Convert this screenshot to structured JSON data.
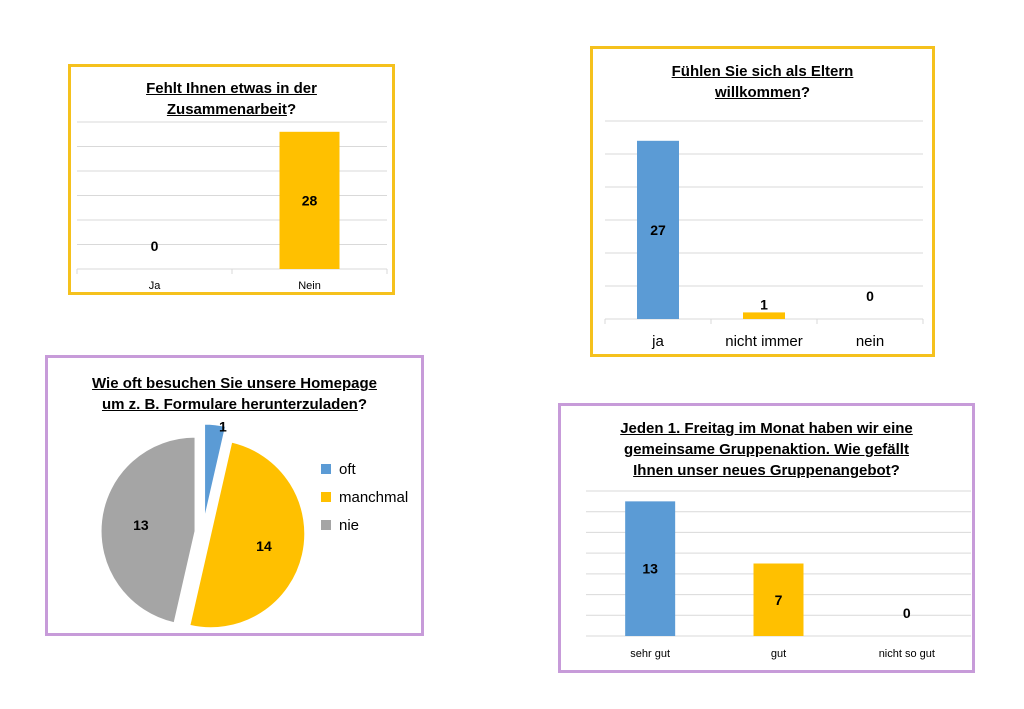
{
  "colors": {
    "blue": "#5b9bd5",
    "gold": "#ffc000",
    "gray": "#a5a5a5",
    "grid": "#d9d9d9",
    "border_gold": "#f5c11d",
    "border_violet": "#c79bd9"
  },
  "chart_data": [
    {
      "id": "c1",
      "type": "bar",
      "title_lines": [
        {
          "text": "Fehlt Ihnen etwas in der",
          "mark": ""
        },
        {
          "text": "Zusammenarbeit",
          "mark": "?"
        }
      ],
      "categories": [
        "Ja",
        "Nein"
      ],
      "values": [
        0,
        28
      ],
      "data_labels": [
        "0",
        "28"
      ],
      "colors": [
        "#ffc000",
        "#ffc000"
      ],
      "ylim": [
        0,
        30
      ],
      "grid": true,
      "legend": "none"
    },
    {
      "id": "c2",
      "type": "bar",
      "title_lines": [
        {
          "text": "Fühlen Sie sich als Eltern",
          "mark": ""
        },
        {
          "text": "willkommen",
          "mark": "?"
        }
      ],
      "categories": [
        "ja",
        "nicht immer",
        "nein"
      ],
      "values": [
        27,
        1,
        0
      ],
      "data_labels": [
        "27",
        "1",
        "0"
      ],
      "colors": [
        "#5b9bd5",
        "#ffc000",
        "#a5a5a5"
      ],
      "ylim": [
        0,
        30
      ],
      "grid": true,
      "legend": "none"
    },
    {
      "id": "c3",
      "type": "pie",
      "title_lines": [
        {
          "text": "Wie oft besuchen Sie unsere Homepage",
          "mark": ""
        },
        {
          "text": "um z. B. Formulare herunterzuladen",
          "mark": "?"
        }
      ],
      "categories": [
        "oft",
        "manchmal",
        "nie"
      ],
      "values": [
        1,
        14,
        13
      ],
      "data_labels": [
        "1",
        "14",
        "13"
      ],
      "colors": [
        "#5b9bd5",
        "#ffc000",
        "#a5a5a5"
      ],
      "legend": "right"
    },
    {
      "id": "c4",
      "type": "bar",
      "title_lines": [
        {
          "text": "Jeden 1. Freitag im Monat haben wir eine",
          "mark": ""
        },
        {
          "text": "gemeinsame Gruppenaktion. Wie gefällt",
          "mark": ""
        },
        {
          "text": "Ihnen unser neues Gruppenangebot",
          "mark": "?"
        }
      ],
      "categories": [
        "sehr gut",
        "gut",
        "nicht so gut"
      ],
      "values": [
        13,
        7,
        0
      ],
      "data_labels": [
        "13",
        "7",
        "0"
      ],
      "colors": [
        "#5b9bd5",
        "#ffc000",
        "#a5a5a5"
      ],
      "ylim": [
        0,
        14
      ],
      "grid": true,
      "legend": "none"
    }
  ]
}
